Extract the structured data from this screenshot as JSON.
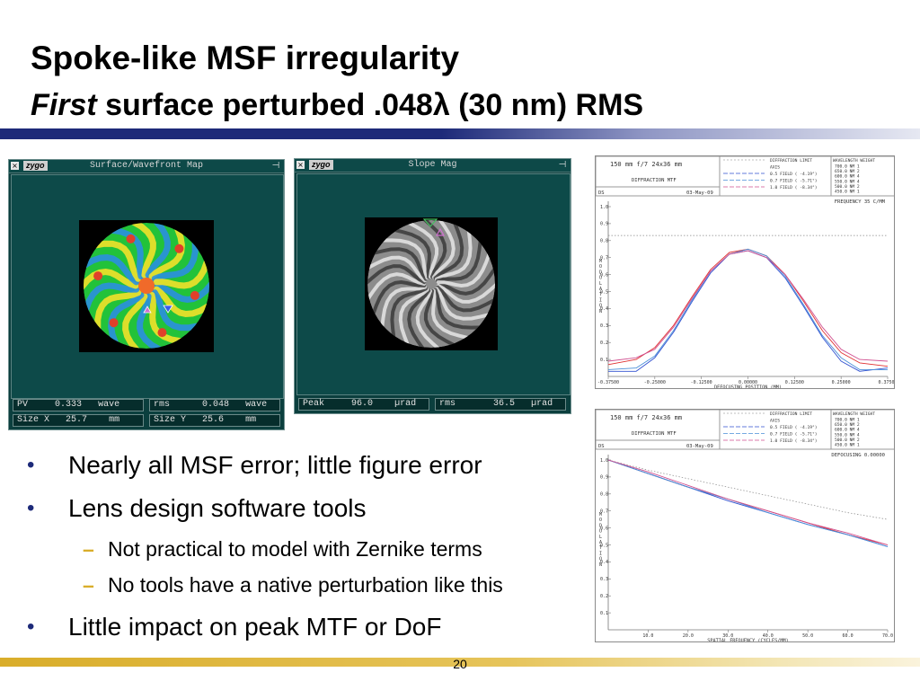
{
  "slide": {
    "title": "Spoke-like MSF irregularity",
    "subtitle_em": "First",
    "subtitle_rest": " surface perturbed .048λ (30 nm) RMS",
    "page_number": "20"
  },
  "window_surface": {
    "logo": "zygo",
    "title": "Surface/Wavefront Map",
    "fields": [
      {
        "label": "PV",
        "value": "0.333",
        "unit": "wave"
      },
      {
        "label": "rms",
        "value": "0.048",
        "unit": "wave"
      },
      {
        "label": "Size X",
        "value": "25.7",
        "unit": "mm"
      },
      {
        "label": "Size Y",
        "value": "25.6",
        "unit": "mm"
      }
    ]
  },
  "window_slope": {
    "logo": "zygo",
    "title": "Slope Mag",
    "fields": [
      {
        "label": "Peak",
        "value": "96.0",
        "unit": "µrad"
      },
      {
        "label": "rms",
        "value": "36.5",
        "unit": "µrad"
      }
    ]
  },
  "bullets": [
    {
      "level": 1,
      "text": "Nearly all MSF error; little figure error"
    },
    {
      "level": 1,
      "text": "Lens design software tools"
    },
    {
      "level": 2,
      "text": "Not practical to model with Zernike terms"
    },
    {
      "level": 2,
      "text": "No tools have a native perturbation like this"
    },
    {
      "level": 1,
      "text": "Little impact on peak MTF or DoF"
    }
  ],
  "colors": {
    "title_rule": "#1d2a79",
    "footer_rule": "#d9ad2a",
    "bullet": "#1d2a79",
    "dash": "#d9ad2a"
  },
  "mtf_header": {
    "lens": "150 mm f/7 24x36 mm",
    "name": "DIFFRACTION MTF",
    "code": "DS",
    "date": "03-May-09",
    "legend": [
      "DIFFRACTION LIMIT",
      "AXIS",
      "0.5 FIELD ( -4.19°)",
      "0.7 FIELD ( -5.71°)",
      "1.0 FIELD ( -8.34°)"
    ],
    "wavelength_header": "WAVELENGTH  WEIGHT",
    "wavelengths": [
      "700.0 NM    1",
      "650.0 NM    2",
      "600.0 NM    4",
      "550.0 NM    4",
      "500.0 NM    2",
      "450.0 NM    1"
    ],
    "ylabel": "MODULATION"
  },
  "chart_data": [
    {
      "type": "line",
      "title": "DIFFRACTION MTF",
      "annotation": "FREQUENCY  35 C/MM",
      "xlabel": "DEFOCUSING POSITION (MM)",
      "ylabel": "MODULATION",
      "xlim": [
        -0.375,
        0.375
      ],
      "ylim": [
        0,
        1.0
      ],
      "x_tick_labels": [
        "-0.37500",
        "-0.25000",
        "-0.12500",
        "0.00000",
        "0.12500",
        "0.25000",
        "0.37500"
      ],
      "y_tick_labels": [
        "0.1",
        "0.2",
        "0.3",
        "0.4",
        "0.5",
        "0.6",
        "0.7",
        "0.8",
        "0.9",
        "1.0"
      ],
      "x": [
        -0.375,
        -0.3,
        -0.25,
        -0.2,
        -0.15,
        -0.1,
        -0.05,
        0.0,
        0.05,
        0.1,
        0.15,
        0.2,
        0.25,
        0.3,
        0.375
      ],
      "series": [
        {
          "name": "DIFFRACTION LIMIT",
          "color": "#888888",
          "dashed": true,
          "values": [
            0.83,
            0.83,
            0.83,
            0.83,
            0.83,
            0.83,
            0.83,
            0.83,
            0.83,
            0.83,
            0.83,
            0.83,
            0.83,
            0.83,
            0.83
          ]
        },
        {
          "name": "AXIS",
          "color": "#e03030",
          "values": [
            0.07,
            0.1,
            0.17,
            0.3,
            0.47,
            0.63,
            0.73,
            0.75,
            0.71,
            0.6,
            0.44,
            0.27,
            0.14,
            0.08,
            0.06
          ]
        },
        {
          "name": "0.5 FIELD ( -4.19°)",
          "color": "#3050d0",
          "values": [
            0.03,
            0.03,
            0.11,
            0.26,
            0.44,
            0.61,
            0.72,
            0.74,
            0.7,
            0.58,
            0.41,
            0.23,
            0.09,
            0.03,
            0.05
          ]
        },
        {
          "name": "0.7 FIELD ( -5.71°)",
          "color": "#4a8fd8",
          "values": [
            0.04,
            0.05,
            0.12,
            0.27,
            0.45,
            0.62,
            0.72,
            0.75,
            0.71,
            0.59,
            0.42,
            0.24,
            0.11,
            0.04,
            0.04
          ]
        },
        {
          "name": "1.0 FIELD ( -8.34°)",
          "color": "#d05090",
          "values": [
            0.09,
            0.11,
            0.16,
            0.29,
            0.46,
            0.62,
            0.72,
            0.74,
            0.7,
            0.6,
            0.45,
            0.29,
            0.16,
            0.1,
            0.09
          ]
        }
      ]
    },
    {
      "type": "line",
      "title": "DIFFRACTION MTF",
      "annotation": "DEFOCUSING 0.00000",
      "xlabel": "SPATIAL FREQUENCY (CYCLES/MM)",
      "ylabel": "MODULATION",
      "xlim": [
        0,
        70
      ],
      "ylim": [
        0,
        1.0
      ],
      "x_tick_labels": [
        "10.0",
        "20.0",
        "30.0",
        "40.0",
        "50.0",
        "60.0",
        "70.0"
      ],
      "y_tick_labels": [
        "0.1",
        "0.2",
        "0.3",
        "0.4",
        "0.5",
        "0.6",
        "0.7",
        "0.8",
        "0.9",
        "1.0"
      ],
      "x": [
        0,
        10,
        20,
        30,
        40,
        50,
        60,
        70
      ],
      "series": [
        {
          "name": "DIFFRACTION LIMIT",
          "color": "#888888",
          "dashed": true,
          "values": [
            1.0,
            0.94,
            0.89,
            0.84,
            0.79,
            0.74,
            0.69,
            0.65
          ]
        },
        {
          "name": "AXIS",
          "color": "#e03030",
          "values": [
            1.0,
            0.92,
            0.84,
            0.77,
            0.7,
            0.63,
            0.56,
            0.5
          ]
        },
        {
          "name": "0.5 FIELD ( -4.19°)",
          "color": "#3050d0",
          "values": [
            1.0,
            0.92,
            0.84,
            0.76,
            0.69,
            0.62,
            0.56,
            0.49
          ]
        },
        {
          "name": "0.7 FIELD ( -5.71°)",
          "color": "#4a8fd8",
          "values": [
            1.0,
            0.92,
            0.84,
            0.77,
            0.69,
            0.62,
            0.56,
            0.49
          ]
        },
        {
          "name": "1.0 FIELD ( -8.34°)",
          "color": "#d05090",
          "values": [
            1.0,
            0.93,
            0.85,
            0.77,
            0.7,
            0.63,
            0.57,
            0.5
          ]
        }
      ]
    }
  ]
}
